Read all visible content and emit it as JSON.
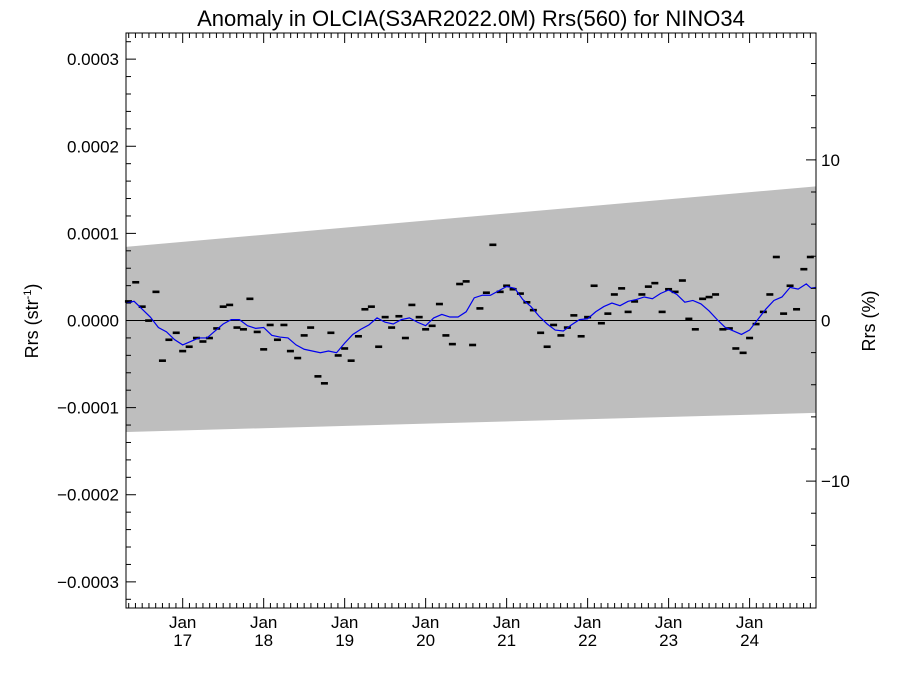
{
  "chart_data": {
    "type": "line",
    "title": "Anomaly in OLCIA(S3AR2022.0M) Rrs(560) for NINO34",
    "ylabel_main": "Rrs (str",
    "ylabel_sup": "-1",
    "ylabel_close": ")",
    "ylabel_right": "Rrs (%)",
    "xlabel": "",
    "xlim": [
      2016.3,
      2024.82
    ],
    "ylim": [
      -0.00033,
      0.00033
    ],
    "ylim_right": [
      -17.9,
      17.9
    ],
    "y_ticks": [
      {
        "value": 0.0003,
        "label": "0.0003"
      },
      {
        "value": 0.0002,
        "label": "0.0002"
      },
      {
        "value": 0.0001,
        "label": "0.0001"
      },
      {
        "value": 0.0,
        "label": "0.0000"
      },
      {
        "value": -0.0001,
        "label": "−0.0001"
      },
      {
        "value": -0.0002,
        "label": "−0.0002"
      },
      {
        "value": -0.0003,
        "label": "−0.0003"
      }
    ],
    "y_ticks_right": [
      {
        "value": 10,
        "label": "10"
      },
      {
        "value": 0,
        "label": "0"
      },
      {
        "value": -10,
        "label": "−10"
      }
    ],
    "x_ticks": [
      {
        "value": 2017.0,
        "month": "Jan",
        "year": "17"
      },
      {
        "value": 2018.0,
        "month": "Jan",
        "year": "18"
      },
      {
        "value": 2019.0,
        "month": "Jan",
        "year": "19"
      },
      {
        "value": 2020.0,
        "month": "Jan",
        "year": "20"
      },
      {
        "value": 2021.0,
        "month": "Jan",
        "year": "21"
      },
      {
        "value": 2022.0,
        "month": "Jan",
        "year": "22"
      },
      {
        "value": 2023.0,
        "month": "Jan",
        "year": "23"
      },
      {
        "value": 2024.0,
        "month": "Jan",
        "year": "24"
      }
    ],
    "band": {
      "upper": [
        [
          2016.3,
          8.45e-05
        ],
        [
          2024.82,
          0.000154
        ]
      ],
      "lower": [
        [
          2016.3,
          -0.000128
        ],
        [
          2024.82,
          -0.000106
        ]
      ],
      "color": "#bebebe"
    },
    "zero_line": 0,
    "series": [
      {
        "style": "markers",
        "color": "#000000",
        "points": [
          [
            2016.33,
            2.2e-05
          ],
          [
            2016.42,
            4.4e-05
          ],
          [
            2016.5,
            1.6e-05
          ],
          [
            2016.58,
            0.0
          ],
          [
            2016.67,
            3.3e-05
          ],
          [
            2016.75,
            -4.6e-05
          ],
          [
            2016.83,
            -2.2e-05
          ],
          [
            2016.92,
            -1.4e-05
          ],
          [
            2017.0,
            -3.5e-05
          ],
          [
            2017.08,
            -3e-05
          ],
          [
            2017.17,
            -2e-05
          ],
          [
            2017.25,
            -2.4e-05
          ],
          [
            2017.33,
            -2e-05
          ],
          [
            2017.42,
            -9e-06
          ],
          [
            2017.5,
            1.6e-05
          ],
          [
            2017.58,
            1.8e-05
          ],
          [
            2017.67,
            -8e-06
          ],
          [
            2017.75,
            -1e-05
          ],
          [
            2017.83,
            2.5e-05
          ],
          [
            2017.92,
            -1.3e-05
          ],
          [
            2018.0,
            -3.3e-05
          ],
          [
            2018.08,
            -5e-06
          ],
          [
            2018.17,
            -2.2e-05
          ],
          [
            2018.25,
            -5e-06
          ],
          [
            2018.33,
            -3.5e-05
          ],
          [
            2018.42,
            -4.3e-05
          ],
          [
            2018.5,
            -1.7e-05
          ],
          [
            2018.58,
            -8e-06
          ],
          [
            2018.67,
            -6.4e-05
          ],
          [
            2018.75,
            -7.2e-05
          ],
          [
            2018.83,
            -1.4e-05
          ],
          [
            2018.92,
            -4e-05
          ],
          [
            2019.0,
            -3.2e-05
          ],
          [
            2019.08,
            -4.6e-05
          ],
          [
            2019.17,
            -1.8e-05
          ],
          [
            2019.25,
            1.3e-05
          ],
          [
            2019.33,
            1.6e-05
          ],
          [
            2019.42,
            -3e-05
          ],
          [
            2019.5,
            4e-06
          ],
          [
            2019.58,
            -8e-06
          ],
          [
            2019.67,
            5e-06
          ],
          [
            2019.75,
            -2e-05
          ],
          [
            2019.83,
            1.8e-05
          ],
          [
            2019.92,
            4e-06
          ],
          [
            2020.0,
            -1e-05
          ],
          [
            2020.08,
            -6e-06
          ],
          [
            2020.17,
            1.9e-05
          ],
          [
            2020.25,
            -1.7e-05
          ],
          [
            2020.33,
            -2.7e-05
          ],
          [
            2020.42,
            4.2e-05
          ],
          [
            2020.5,
            4.5e-05
          ],
          [
            2020.58,
            -2.8e-05
          ],
          [
            2020.67,
            1.4e-05
          ],
          [
            2020.75,
            3.2e-05
          ],
          [
            2020.83,
            8.7e-05
          ],
          [
            2020.92,
            3.3e-05
          ],
          [
            2021.0,
            4e-05
          ],
          [
            2021.08,
            3.6e-05
          ],
          [
            2021.17,
            3.1e-05
          ],
          [
            2021.25,
            2.1e-05
          ],
          [
            2021.33,
            1.2e-05
          ],
          [
            2021.42,
            -1.4e-05
          ],
          [
            2021.5,
            -3e-05
          ],
          [
            2021.58,
            -5e-06
          ],
          [
            2021.67,
            -1.7e-05
          ],
          [
            2021.75,
            -8e-06
          ],
          [
            2021.83,
            6e-06
          ],
          [
            2021.92,
            -1.8e-05
          ],
          [
            2022.0,
            4e-06
          ],
          [
            2022.08,
            4e-05
          ],
          [
            2022.17,
            -3e-06
          ],
          [
            2022.25,
            8e-06
          ],
          [
            2022.33,
            3e-05
          ],
          [
            2022.42,
            3.7e-05
          ],
          [
            2022.5,
            1e-05
          ],
          [
            2022.58,
            2.2e-05
          ],
          [
            2022.67,
            3e-05
          ],
          [
            2022.75,
            3.9e-05
          ],
          [
            2022.83,
            4.3e-05
          ],
          [
            2022.92,
            1e-05
          ],
          [
            2023.0,
            3.6e-05
          ],
          [
            2023.08,
            3.3e-05
          ],
          [
            2023.17,
            4.6e-05
          ],
          [
            2023.25,
            2e-06
          ],
          [
            2023.33,
            -1e-05
          ],
          [
            2023.42,
            2.5e-05
          ],
          [
            2023.5,
            2.7e-05
          ],
          [
            2023.58,
            3e-05
          ],
          [
            2023.67,
            -1e-05
          ],
          [
            2023.75,
            -9e-06
          ],
          [
            2023.83,
            -3.2e-05
          ],
          [
            2023.92,
            -3.7e-05
          ],
          [
            2024.0,
            -2e-05
          ],
          [
            2024.08,
            -4e-06
          ],
          [
            2024.17,
            1e-05
          ],
          [
            2024.25,
            3e-05
          ],
          [
            2024.33,
            7.3e-05
          ],
          [
            2024.42,
            8e-06
          ],
          [
            2024.5,
            4e-05
          ],
          [
            2024.58,
            1.3e-05
          ],
          [
            2024.67,
            5.9e-05
          ],
          [
            2024.75,
            7.3e-05
          ]
        ]
      },
      {
        "style": "line",
        "color": "#0000ee",
        "points": [
          [
            2016.3,
            2e-05
          ],
          [
            2016.4,
            2.2e-05
          ],
          [
            2016.5,
            1.3e-05
          ],
          [
            2016.6,
            4e-06
          ],
          [
            2016.7,
            -8e-06
          ],
          [
            2016.8,
            -1.3e-05
          ],
          [
            2016.9,
            -2.2e-05
          ],
          [
            2017.0,
            -2.8e-05
          ],
          [
            2017.1,
            -2.4e-05
          ],
          [
            2017.2,
            -2e-05
          ],
          [
            2017.3,
            -2e-05
          ],
          [
            2017.4,
            -1.2e-05
          ],
          [
            2017.5,
            -4e-06
          ],
          [
            2017.6,
            1e-06
          ],
          [
            2017.7,
            1e-06
          ],
          [
            2017.8,
            -6e-06
          ],
          [
            2017.9,
            -9e-06
          ],
          [
            2018.0,
            -8e-06
          ],
          [
            2018.1,
            -1.7e-05
          ],
          [
            2018.2,
            -1.9e-05
          ],
          [
            2018.3,
            -2e-05
          ],
          [
            2018.4,
            -2.8e-05
          ],
          [
            2018.5,
            -3.3e-05
          ],
          [
            2018.6,
            -3.5e-05
          ],
          [
            2018.7,
            -3.7e-05
          ],
          [
            2018.8,
            -3.5e-05
          ],
          [
            2018.9,
            -3.7e-05
          ],
          [
            2019.0,
            -2.6e-05
          ],
          [
            2019.1,
            -1.6e-05
          ],
          [
            2019.2,
            -1e-05
          ],
          [
            2019.3,
            -5e-06
          ],
          [
            2019.4,
            3e-06
          ],
          [
            2019.5,
            -2e-06
          ],
          [
            2019.6,
            -4e-06
          ],
          [
            2019.7,
            1e-06
          ],
          [
            2019.8,
            3e-06
          ],
          [
            2019.9,
            -2e-06
          ],
          [
            2020.0,
            -6e-06
          ],
          [
            2020.1,
            3e-06
          ],
          [
            2020.2,
            7e-06
          ],
          [
            2020.3,
            4e-06
          ],
          [
            2020.4,
            4e-06
          ],
          [
            2020.5,
            1e-05
          ],
          [
            2020.6,
            2.6e-05
          ],
          [
            2020.7,
            2.9e-05
          ],
          [
            2020.8,
            2.9e-05
          ],
          [
            2020.9,
            3.4e-05
          ],
          [
            2021.0,
            3.9e-05
          ],
          [
            2021.1,
            3.7e-05
          ],
          [
            2021.2,
            2.4e-05
          ],
          [
            2021.3,
            1.6e-05
          ],
          [
            2021.4,
            5e-06
          ],
          [
            2021.5,
            -4e-06
          ],
          [
            2021.6,
            -1.1e-05
          ],
          [
            2021.7,
            -1.2e-05
          ],
          [
            2021.8,
            -5e-06
          ],
          [
            2021.9,
            1e-06
          ],
          [
            2022.0,
            2e-06
          ],
          [
            2022.1,
            1e-05
          ],
          [
            2022.2,
            1.6e-05
          ],
          [
            2022.3,
            2e-05
          ],
          [
            2022.4,
            1.7e-05
          ],
          [
            2022.5,
            2.2e-05
          ],
          [
            2022.6,
            2.4e-05
          ],
          [
            2022.7,
            2.7e-05
          ],
          [
            2022.8,
            2.5e-05
          ],
          [
            2022.9,
            3.1e-05
          ],
          [
            2023.0,
            3.5e-05
          ],
          [
            2023.1,
            3e-05
          ],
          [
            2023.2,
            2.1e-05
          ],
          [
            2023.3,
            2.3e-05
          ],
          [
            2023.4,
            1.9e-05
          ],
          [
            2023.5,
            1.1e-05
          ],
          [
            2023.6,
            1e-06
          ],
          [
            2023.7,
            -8e-06
          ],
          [
            2023.8,
            -1.2e-05
          ],
          [
            2023.9,
            -1.6e-05
          ],
          [
            2024.0,
            -1.1e-05
          ],
          [
            2024.1,
            1e-06
          ],
          [
            2024.2,
            1.3e-05
          ],
          [
            2024.3,
            2.3e-05
          ],
          [
            2024.4,
            2.7e-05
          ],
          [
            2024.5,
            3.8e-05
          ],
          [
            2024.6,
            3.6e-05
          ],
          [
            2024.7,
            4.2e-05
          ],
          [
            2024.76,
            3.7e-05
          ],
          [
            2024.82,
            3.8e-05
          ]
        ]
      }
    ]
  }
}
